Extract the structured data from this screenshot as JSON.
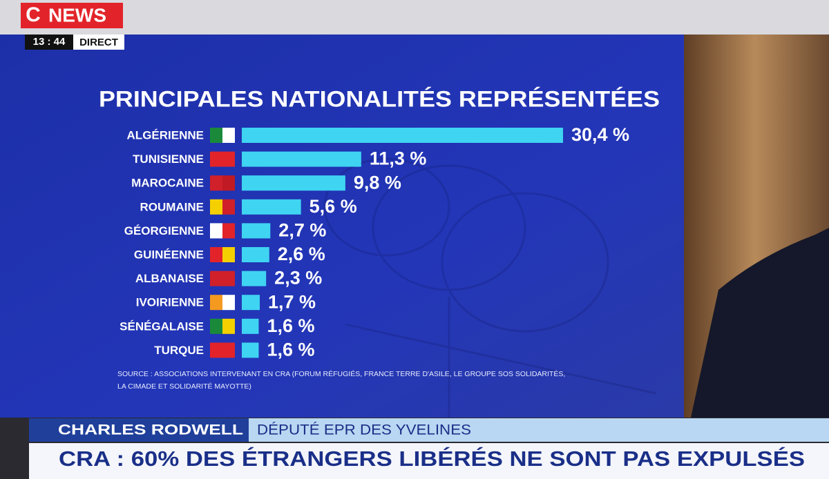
{
  "broadcast": {
    "logo": "NEWS",
    "time": "13 : 44",
    "live": "DIRECT",
    "guest_name": "CHARLES RODWELL",
    "guest_role": "DÉPUTÉ EPR DES YVELINES",
    "headline": "CRA : 60% DES ÉTRANGERS LIBÉRÉS NE SONT PAS EXPULSÉS"
  },
  "chart_data": {
    "type": "bar",
    "orientation": "horizontal",
    "title": "PRINCIPALES NATIONALITÉS REPRÉSENTÉES",
    "categories": [
      "ALGÉRIENNE",
      "TUNISIENNE",
      "MAROCAINE",
      "ROUMAINE",
      "GÉORGIENNE",
      "GUINÉENNE",
      "ALBANAISE",
      "IVOIRIENNE",
      "SÉNÉGALAISE",
      "TURQUE"
    ],
    "values": [
      30.4,
      11.3,
      9.8,
      5.6,
      2.7,
      2.6,
      2.3,
      1.7,
      1.6,
      1.6
    ],
    "value_labels": [
      "30,4 %",
      "11,3 %",
      "9,8 %",
      "5,6 %",
      "2,7 %",
      "2,6 %",
      "2,3 %",
      "1,7 %",
      "1,6 %",
      "1,6 %"
    ],
    "color": "#3fd4f2",
    "source": [
      "SOURCE : ASSOCIATIONS INTERVENANT EN CRA (FORUM RÉFUGIÉS, FRANCE TERRE D'ASILE, LE GROUPE SOS SOLIDARITÉS,",
      "LA CIMADE ET SOLIDARITÉ MAYOTTE)"
    ]
  }
}
